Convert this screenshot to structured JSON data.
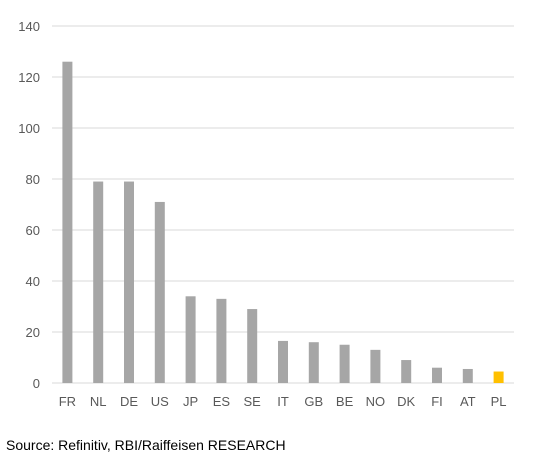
{
  "chart_data": {
    "type": "bar",
    "categories": [
      "FR",
      "NL",
      "DE",
      "US",
      "JP",
      "ES",
      "SE",
      "IT",
      "GB",
      "BE",
      "NO",
      "DK",
      "FI",
      "AT",
      "PL"
    ],
    "values": [
      126,
      79,
      79,
      71,
      34,
      33,
      29,
      16.5,
      16,
      15,
      13,
      9,
      6,
      5.5,
      4.5
    ],
    "ylim": [
      0,
      140
    ],
    "yticks": [
      0,
      20,
      40,
      60,
      80,
      100,
      120,
      140
    ],
    "grid": true,
    "legend": "none",
    "colors": {
      "default": "#a6a6a6",
      "highlight": "#ffc000",
      "highlight_category": "PL",
      "grid": "#d9d9d9"
    }
  },
  "source": "Source: Refinitiv, RBI/Raiffeisen RESEARCH"
}
